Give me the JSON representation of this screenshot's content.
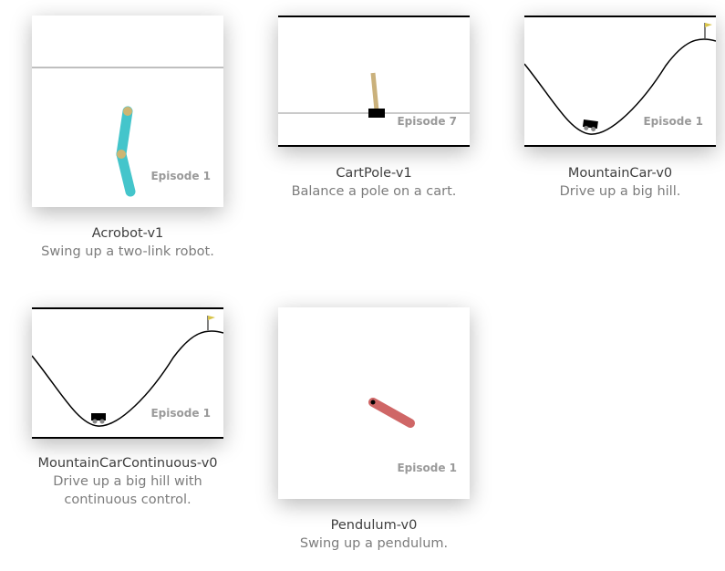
{
  "environments": [
    {
      "title": "Acrobot-v1",
      "description": "Swing up a two-link robot.",
      "episode": "Episode 1"
    },
    {
      "title": "CartPole-v1",
      "description": "Balance a pole on a cart.",
      "episode": "Episode 7"
    },
    {
      "title": "MountainCar-v0",
      "description": "Drive up a big hill.",
      "episode": "Episode 1"
    },
    {
      "title": "MountainCarContinuous-v0",
      "description_lines": [
        "Drive up a big hill with",
        "continuous control."
      ],
      "episode": "Episode 1"
    },
    {
      "title": "Pendulum-v0",
      "description": "Swing up a pendulum.",
      "episode": "Episode 1"
    }
  ],
  "colors": {
    "acrobot_link": "#44c5cb",
    "acrobot_joint": "#cdb673",
    "cart": "#000000",
    "pole": "#cab17c",
    "pendulum_rod": "#cf6666",
    "flag": "#d8c44a",
    "episode_text": "#9a9a9a"
  }
}
